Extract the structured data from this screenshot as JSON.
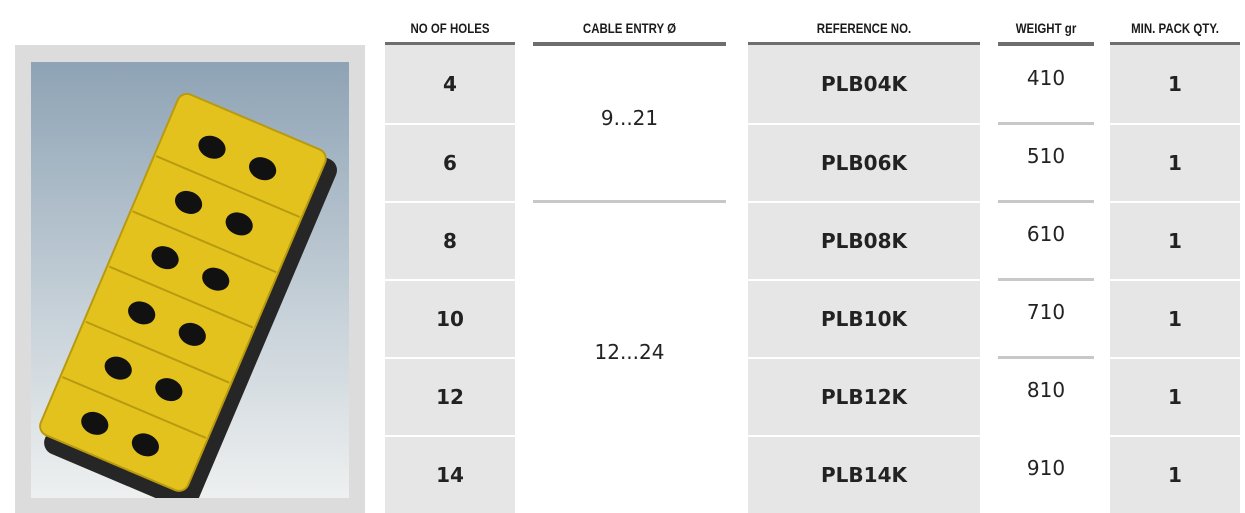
{
  "table": {
    "headers": [
      "NO OF HOLES",
      "CABLE ENTRY Ø",
      "REFERENCE NO.",
      "WEIGHT gr",
      "MIN. PACK QTY."
    ],
    "rows": [
      {
        "holes": "4",
        "reference": "PLB04K",
        "weight": "410",
        "pack": "1"
      },
      {
        "holes": "6",
        "reference": "PLB06K",
        "weight": "510",
        "pack": "1"
      },
      {
        "holes": "8",
        "reference": "PLB08K",
        "weight": "610",
        "pack": "1"
      },
      {
        "holes": "10",
        "reference": "PLB10K",
        "weight": "710",
        "pack": "1"
      },
      {
        "holes": "12",
        "reference": "PLB12K",
        "weight": "810",
        "pack": "1"
      },
      {
        "holes": "14",
        "reference": "PLB14K",
        "weight": "910",
        "pack": "1"
      }
    ],
    "cable_entry": [
      {
        "label": "9...21",
        "rows": 2
      },
      {
        "label": "12...24",
        "rows": 4
      }
    ]
  }
}
